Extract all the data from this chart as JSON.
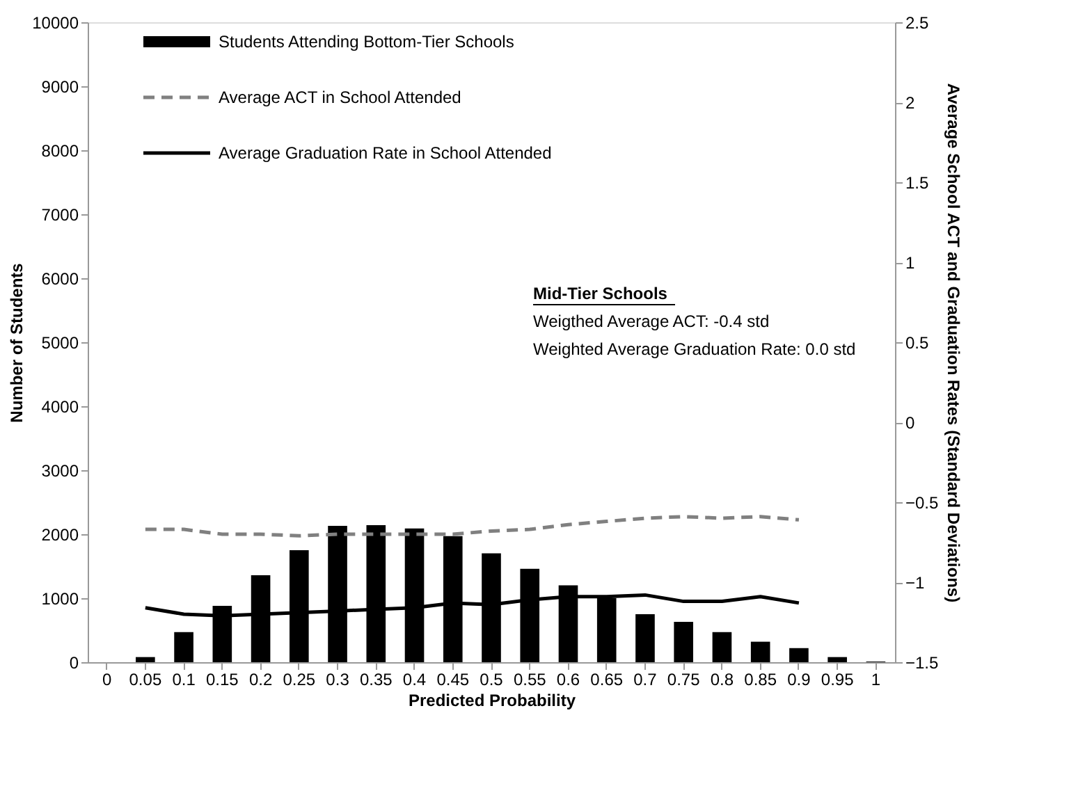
{
  "chart_data": {
    "type": "bar",
    "xlabel": "Predicted Probability",
    "ylabel": "Number of Students",
    "y2label": "Average School ACT and Graduation Rates (Standard Deviations)",
    "categories": [
      "0",
      "0.05",
      "0.1",
      "0.15",
      "0.2",
      "0.25",
      "0.3",
      "0.35",
      "0.4",
      "0.45",
      "0.5",
      "0.55",
      "0.6",
      "0.65",
      "0.7",
      "0.75",
      "0.8",
      "0.85",
      "0.9",
      "0.95",
      "1"
    ],
    "series": [
      {
        "name": "Students Attending Bottom-Tier Schools",
        "color": "#000000",
        "values": [
          0,
          80,
          470,
          880,
          1360,
          1750,
          2130,
          2140,
          2090,
          1970,
          1700,
          1460,
          1200,
          1000,
          750,
          630,
          470,
          320,
          220,
          80,
          10
        ]
      },
      {
        "name": "Average ACT in School Attended",
        "type": "line",
        "axis": "y2",
        "color": "#808080",
        "line_style": "dashed",
        "values": [
          null,
          -0.67,
          -0.67,
          -0.7,
          -0.7,
          -0.71,
          -0.7,
          -0.7,
          -0.7,
          -0.7,
          -0.68,
          -0.67,
          -0.64,
          -0.62,
          -0.6,
          -0.59,
          -0.6,
          -0.59,
          -0.61,
          null,
          null
        ]
      },
      {
        "name": "Average Graduation Rate in School Attended",
        "type": "line",
        "axis": "y2",
        "color": "#000000",
        "line_style": "solid",
        "values": [
          null,
          -1.16,
          -1.2,
          -1.21,
          -1.2,
          -1.19,
          -1.18,
          -1.17,
          -1.16,
          -1.13,
          -1.14,
          -1.11,
          -1.09,
          -1.09,
          -1.08,
          -1.12,
          -1.12,
          -1.09,
          -1.13,
          null,
          null
        ]
      }
    ],
    "ylim": [
      0,
      10000
    ],
    "yticks": [
      0,
      1000,
      2000,
      3000,
      4000,
      5000,
      6000,
      7000,
      8000,
      9000,
      10000
    ],
    "y2lim": [
      -1.5,
      2.5
    ],
    "y2ticks": [
      -1.5,
      -1,
      -0.5,
      0,
      0.5,
      1,
      1.5,
      2,
      2.5
    ],
    "annotations": [
      "Mid-Tier Schools",
      "Weigthed Average ACT: -0.4 std",
      "Weighted Average Graduation Rate:  0.0 std"
    ],
    "legend": "top left",
    "grid": false
  }
}
